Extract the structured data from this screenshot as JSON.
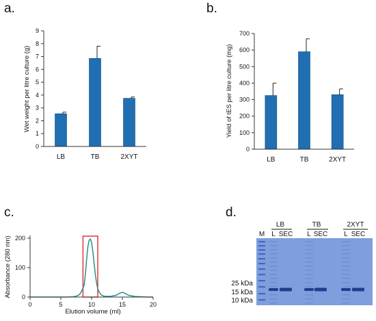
{
  "colors": {
    "bar": "#1f6fb2",
    "bar_edge": "#0e4c82",
    "trace": "#2a8f8a",
    "highlight_box": "#e0282e",
    "gel_background": "#7f9edd",
    "band": "#1f3d8f"
  },
  "chart_data": [
    {
      "panel": "a.",
      "type": "bar",
      "categories": [
        "LB",
        "TB",
        "2XYT"
      ],
      "values": [
        2.55,
        6.85,
        3.75
      ],
      "errors": [
        0.12,
        0.95,
        0.1
      ],
      "ylabel": "Wet weight per litre culture (g)",
      "ylim": [
        0,
        9
      ],
      "yticks": [
        "0",
        "1",
        "2",
        "3",
        "4",
        "5",
        "6",
        "7",
        "8",
        "9"
      ],
      "grid": false
    },
    {
      "panel": "b.",
      "type": "bar",
      "categories": [
        "LB",
        "TB",
        "2XYT"
      ],
      "values": [
        325,
        590,
        330
      ],
      "errors": [
        75,
        78,
        35
      ],
      "ylabel": "Yield of tES per litre culture (mg)",
      "ylim": [
        0,
        700
      ],
      "yticks": [
        "0",
        "100",
        "200",
        "300",
        "400",
        "500",
        "600",
        "700"
      ],
      "grid": false
    },
    {
      "panel": "c.",
      "type": "line",
      "xlabel": "Elution volume (ml)",
      "ylabel": "Absorbance (280 nm)",
      "xlim": [
        0,
        20
      ],
      "ylim": [
        0,
        200
      ],
      "xticks": [
        "0",
        "5",
        "10",
        "15",
        "20"
      ],
      "yticks": [
        "0",
        "100",
        "200"
      ],
      "highlight_range": [
        8.6,
        11.0
      ],
      "x": [
        0,
        2,
        4,
        6,
        7,
        7.5,
        8,
        8.3,
        8.6,
        8.8,
        9.0,
        9.2,
        9.4,
        9.6,
        9.8,
        10.0,
        10.2,
        10.4,
        10.6,
        10.8,
        11.0,
        11.3,
        11.6,
        12,
        13,
        14,
        14.5,
        15,
        15.5,
        16,
        17,
        18,
        19,
        20
      ],
      "y": [
        0,
        0,
        0,
        0,
        1,
        3,
        8,
        17,
        30,
        42,
        80,
        130,
        172,
        193,
        197,
        185,
        155,
        115,
        78,
        48,
        28,
        14,
        7,
        3,
        2,
        6,
        12,
        16,
        12,
        6,
        2,
        1,
        0,
        0
      ]
    },
    {
      "panel": "d.",
      "type": "gel",
      "marker_lane_label": "M",
      "groups": [
        {
          "name": "LB",
          "lanes": [
            "L",
            "SEC"
          ]
        },
        {
          "name": "TB",
          "lanes": [
            "L",
            "SEC"
          ]
        },
        {
          "name": "2XYT",
          "lanes": [
            "L",
            "SEC"
          ]
        }
      ],
      "size_markers": [
        "25 kDa",
        "15 kDa",
        "10 kDa"
      ]
    }
  ]
}
